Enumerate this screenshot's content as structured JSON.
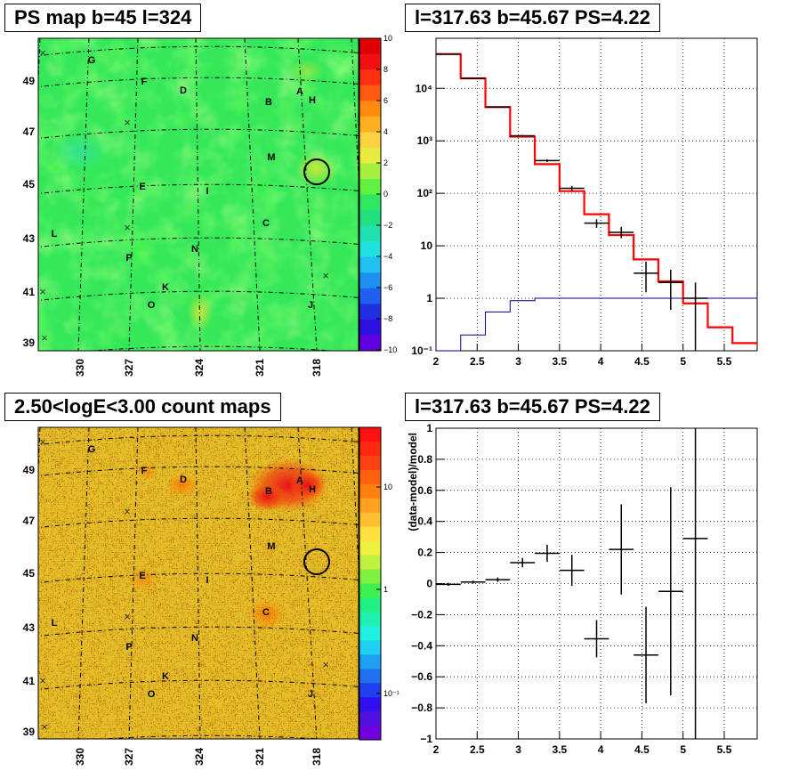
{
  "panels": {
    "ps_map": {
      "title": "PS map b=45 l=324"
    },
    "spectrum": {
      "title": "l=317.63 b=45.67 PS=4.22"
    },
    "count_map": {
      "title": "2.50<logE<3.00 count maps"
    },
    "residual": {
      "title": "l=317.63 b=45.67 PS=4.22"
    }
  },
  "maps": {
    "lon_ticks": [
      "330",
      "327",
      "324",
      "321",
      "318"
    ],
    "lat_ticks": [
      "49",
      "47",
      "45",
      "43",
      "41",
      "39"
    ],
    "ps_colorbar_ticks": [
      "10",
      "8",
      "6",
      "4",
      "2",
      "0",
      "−2",
      "−4",
      "−6",
      "−8",
      "−10"
    ],
    "count_colorbar_ticks": [
      "10",
      "1",
      "10⁻¹"
    ],
    "source_labels": [
      "A",
      "B",
      "C",
      "D",
      "E",
      "F",
      "G",
      "H",
      "I",
      "J",
      "K",
      "L",
      "M",
      "N",
      "O",
      "P"
    ],
    "cross_markers": [
      "×",
      "×",
      "×",
      "×",
      "×",
      "×"
    ]
  },
  "chart_data": [
    {
      "type": "line",
      "name": "spectrum",
      "title": "l=317.63 b=45.67 PS=4.22",
      "xlim": [
        2,
        5.9
      ],
      "ylim": [
        0.1,
        90000
      ],
      "yscale": "log",
      "grid": true,
      "x_ticks": [
        "2",
        "2.5",
        "3",
        "3.5",
        "4",
        "4.5",
        "5",
        "5.5"
      ],
      "y_ticks": [
        "10⁻¹",
        "1",
        "10",
        "10²",
        "10³",
        "10⁴"
      ],
      "series": [
        {
          "kind": "model-histogram",
          "color": "#ff0000",
          "bin_edges": [
            2.0,
            2.3,
            2.6,
            2.9,
            3.2,
            3.5,
            3.8,
            4.1,
            4.4,
            4.7,
            5.0,
            5.3,
            5.6,
            5.9
          ],
          "values": [
            45000,
            15500,
            4400,
            1200,
            360,
            110,
            40,
            16,
            5.5,
            2.1,
            0.8,
            0.28,
            0.14
          ]
        },
        {
          "kind": "background-histogram",
          "color": "#00008b",
          "bin_edges": [
            2.0,
            2.3,
            2.6,
            2.9,
            3.2,
            3.5,
            3.8,
            4.1,
            4.4,
            4.7,
            5.0,
            5.3,
            5.6,
            5.9
          ],
          "values": [
            0.1,
            0.2,
            0.55,
            0.9,
            1.0,
            1.0,
            1.0,
            1.0,
            1.0,
            1.0,
            1.0,
            1.0,
            1.0
          ]
        },
        {
          "kind": "data-points",
          "color": "#000000",
          "points": [
            {
              "x": 2.15,
              "xerr": 0.15,
              "y": 45000,
              "ylo": 44500,
              "yhi": 45500
            },
            {
              "x": 2.45,
              "xerr": 0.15,
              "y": 15500,
              "ylo": 15300,
              "yhi": 15700
            },
            {
              "x": 2.75,
              "xerr": 0.15,
              "y": 4400,
              "ylo": 4330,
              "yhi": 4470
            },
            {
              "x": 3.05,
              "xerr": 0.15,
              "y": 1250,
              "ylo": 1200,
              "yhi": 1290
            },
            {
              "x": 3.35,
              "xerr": 0.15,
              "y": 420,
              "ylo": 395,
              "yhi": 445
            },
            {
              "x": 3.65,
              "xerr": 0.15,
              "y": 125,
              "ylo": 112,
              "yhi": 138
            },
            {
              "x": 3.95,
              "xerr": 0.15,
              "y": 27,
              "ylo": 22,
              "yhi": 32
            },
            {
              "x": 4.25,
              "xerr": 0.15,
              "y": 18,
              "ylo": 14,
              "yhi": 23
            },
            {
              "x": 4.55,
              "xerr": 0.15,
              "y": 3,
              "ylo": 1.3,
              "yhi": 5
            },
            {
              "x": 4.85,
              "xerr": 0.15,
              "y": 2,
              "ylo": 0.6,
              "yhi": 3.5
            },
            {
              "x": 5.15,
              "xerr": 0.15,
              "y": 1,
              "ylo": 0.1,
              "yhi": 2
            }
          ]
        }
      ]
    },
    {
      "type": "scatter",
      "name": "residual",
      "title": "l=317.63 b=45.67 PS=4.22",
      "ylabel": "(data-model)/model",
      "xlim": [
        2,
        5.9
      ],
      "ylim": [
        -1,
        1
      ],
      "grid": true,
      "x_ticks": [
        "2",
        "2.5",
        "3",
        "3.5",
        "4",
        "4.5",
        "5",
        "5.5"
      ],
      "y_ticks": [
        "−1",
        "−0.8",
        "−0.6",
        "−0.4",
        "−0.2",
        "0",
        "0.2",
        "0.4",
        "0.6",
        "0.8",
        "1"
      ],
      "series": [
        {
          "kind": "data-points",
          "color": "#000000",
          "points": [
            {
              "x": 2.15,
              "xerr": 0.15,
              "y": -0.005,
              "yerr": 0.01
            },
            {
              "x": 2.45,
              "xerr": 0.15,
              "y": 0.01,
              "yerr": 0.01
            },
            {
              "x": 2.75,
              "xerr": 0.15,
              "y": 0.025,
              "yerr": 0.015
            },
            {
              "x": 3.05,
              "xerr": 0.15,
              "y": 0.135,
              "yerr": 0.03
            },
            {
              "x": 3.35,
              "xerr": 0.15,
              "y": 0.195,
              "yerr": 0.055
            },
            {
              "x": 3.65,
              "xerr": 0.15,
              "y": 0.085,
              "yerr": 0.1
            },
            {
              "x": 3.95,
              "xerr": 0.15,
              "y": -0.355,
              "yerr": 0.12
            },
            {
              "x": 4.25,
              "xerr": 0.15,
              "y": 0.22,
              "yerr": 0.29
            },
            {
              "x": 4.55,
              "xerr": 0.15,
              "y": -0.46,
              "yerr": 0.31
            },
            {
              "x": 4.85,
              "xerr": 0.15,
              "y": -0.05,
              "yerr": 0.67
            },
            {
              "x": 5.15,
              "xerr": 0.15,
              "y": 0.29,
              "yerr": 1.3
            }
          ]
        }
      ]
    }
  ]
}
